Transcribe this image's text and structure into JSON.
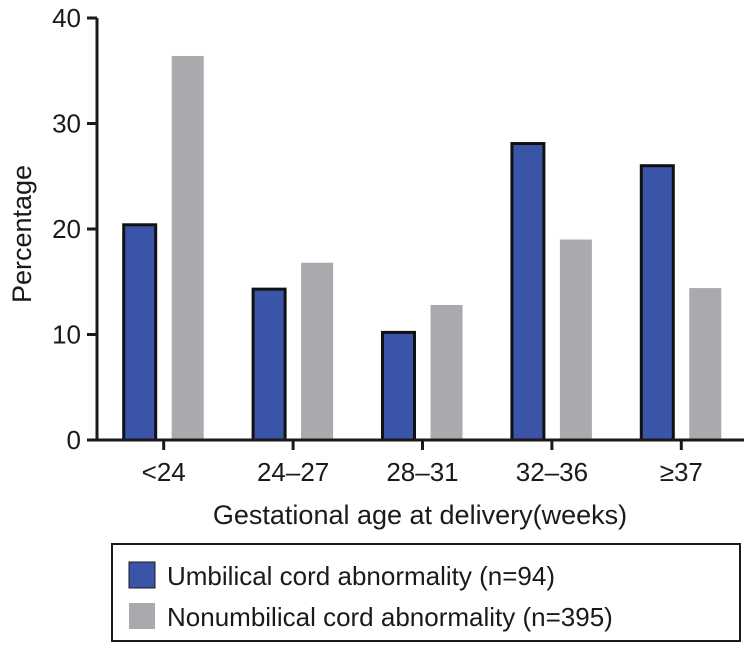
{
  "chart_data": {
    "type": "bar",
    "title": "",
    "xlabel": "Gestational age at delivery(weeks)",
    "ylabel": "Percentage",
    "ylim": [
      0,
      40
    ],
    "yticks": [
      0,
      10,
      20,
      30,
      40
    ],
    "ytick_labels": [
      "0",
      "10",
      "20",
      "30",
      "40"
    ],
    "grid": false,
    "legend_position": "bottom",
    "categories": [
      "<24",
      "24–27",
      "28–31",
      "32–36",
      "≥37"
    ],
    "series": [
      {
        "name": "Umbilical cord abnormality (n=94)",
        "color": "#3a54a8",
        "outlined": true,
        "values": [
          20.4,
          14.3,
          10.2,
          28.1,
          26.0
        ]
      },
      {
        "name": "Nonumbilical cord abnormality (n=395)",
        "color": "#a9a9ae",
        "outlined": false,
        "values": [
          36.4,
          16.8,
          12.8,
          19.0,
          14.4
        ]
      }
    ]
  }
}
